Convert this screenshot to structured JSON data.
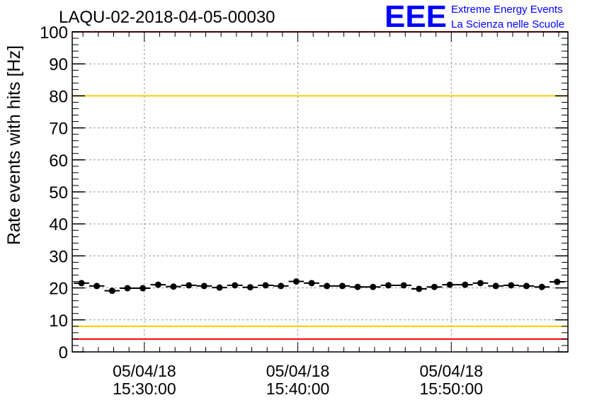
{
  "chart_data": {
    "type": "scatter",
    "title": "LAQU-02-2018-04-05-00030",
    "ylabel": "Rate events with hits [Hz]",
    "xlabel": "",
    "ylim": [
      0,
      100
    ],
    "xlim_minutes_from_1530": [
      -4.7,
      27.6
    ],
    "grid": true,
    "y_ticks": [
      "0",
      "10",
      "20",
      "30",
      "40",
      "50",
      "60",
      "70",
      "80",
      "90",
      "100"
    ],
    "x_ticks": [
      {
        "minutes": 0,
        "date": "05/04/18",
        "time": "15:30:00"
      },
      {
        "minutes": 10,
        "date": "05/04/18",
        "time": "15:40:00"
      },
      {
        "minutes": 20,
        "date": "05/04/18",
        "time": "15:50:00"
      }
    ],
    "series": [
      {
        "name": "rate",
        "x_minutes_from_1530": [
          -4.1,
          -3.1,
          -2.1,
          -1.1,
          -0.1,
          0.9,
          1.9,
          2.9,
          3.9,
          4.9,
          5.9,
          6.9,
          7.9,
          8.9,
          9.9,
          10.9,
          11.9,
          12.9,
          13.9,
          14.9,
          15.9,
          16.9,
          17.9,
          18.9,
          19.9,
          20.9,
          21.9,
          22.9,
          23.9,
          24.9,
          25.9,
          26.9
        ],
        "values": [
          21.5,
          20.6,
          19.1,
          19.9,
          19.9,
          21.0,
          20.4,
          20.8,
          20.6,
          20.1,
          20.8,
          20.2,
          20.8,
          20.6,
          22.0,
          21.5,
          20.6,
          20.6,
          20.3,
          20.3,
          20.8,
          20.8,
          19.7,
          20.3,
          21.0,
          21.0,
          21.5,
          20.6,
          20.8,
          20.6,
          20.3,
          21.9
        ],
        "bin_width_minutes": 1.0
      }
    ],
    "reference_lines": [
      {
        "value": 100,
        "color": "#ff0000"
      },
      {
        "value": 80,
        "color": "#ffcc00"
      },
      {
        "value": 8,
        "color": "#ffcc00"
      },
      {
        "value": 4,
        "color": "#ff0000"
      }
    ]
  },
  "logo": {
    "letters": "EEE",
    "line1": "Extreme Energy Events",
    "line2": "La Scienza nelle Scuole",
    "color": "#0000ff"
  }
}
